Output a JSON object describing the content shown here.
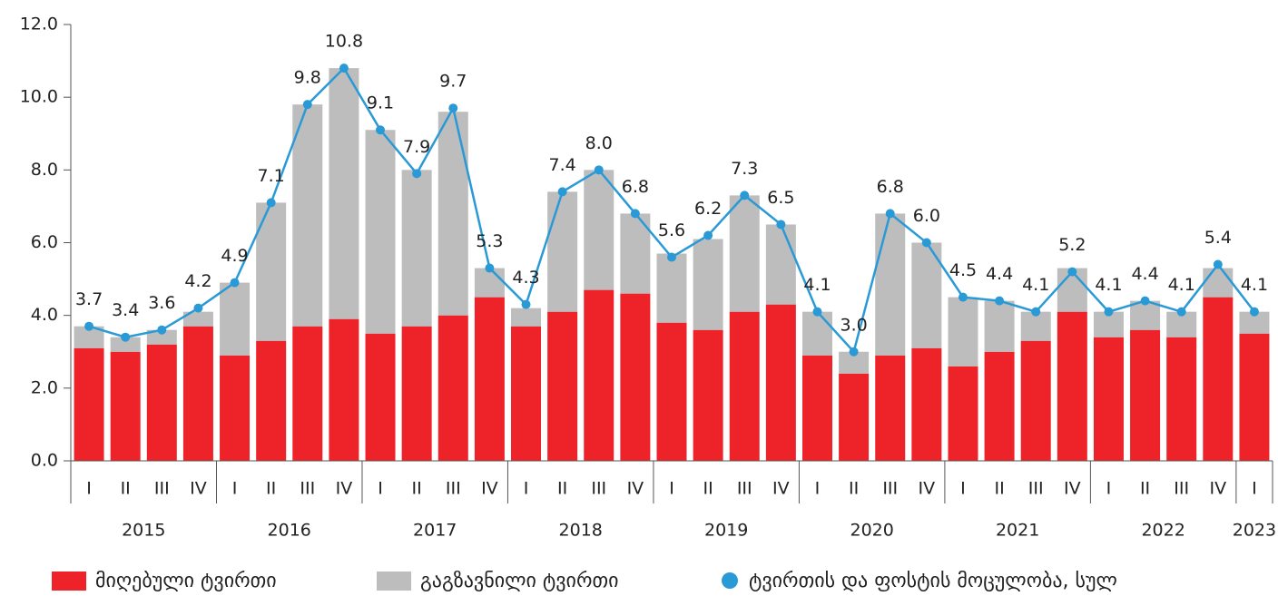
{
  "chart_data": {
    "type": "bar",
    "categories": [
      "I",
      "II",
      "III",
      "IV",
      "I",
      "II",
      "III",
      "IV",
      "I",
      "II",
      "III",
      "IV",
      "I",
      "II",
      "III",
      "IV",
      "I",
      "II",
      "III",
      "IV",
      "I",
      "II",
      "III",
      "IV",
      "I",
      "II",
      "III",
      "IV",
      "I",
      "II",
      "III",
      "IV",
      "I"
    ],
    "years": [
      "2015",
      "2016",
      "2017",
      "2018",
      "2019",
      "2020",
      "2021",
      "2022",
      "2023"
    ],
    "stacked": true,
    "series": [
      {
        "name": "მიღებული ტვირთი",
        "color": "#ee2229",
        "type": "bar",
        "values": [
          3.1,
          3.0,
          3.2,
          3.7,
          2.9,
          3.3,
          3.7,
          3.9,
          3.5,
          3.7,
          4.0,
          4.5,
          3.7,
          4.1,
          4.7,
          4.6,
          3.8,
          3.6,
          4.1,
          4.3,
          2.9,
          2.4,
          2.9,
          3.1,
          2.6,
          3.0,
          3.3,
          4.1,
          3.4,
          3.6,
          3.4,
          4.5,
          3.5
        ]
      },
      {
        "name": "გაგზავნილი ტვირთი",
        "color": "#bdbdbe",
        "type": "bar",
        "values": [
          0.6,
          0.4,
          0.4,
          0.4,
          2.0,
          3.8,
          6.1,
          6.9,
          5.6,
          4.3,
          5.6,
          0.8,
          0.5,
          3.3,
          3.3,
          2.2,
          1.9,
          2.5,
          3.2,
          2.2,
          1.2,
          0.6,
          3.9,
          2.9,
          1.9,
          1.4,
          0.8,
          1.2,
          0.7,
          0.8,
          0.7,
          0.8,
          0.6
        ]
      },
      {
        "name": "ტვირთის და ფოსტის მოცულობა, სულ",
        "color": "#2a9ad6",
        "type": "line",
        "values": [
          3.7,
          3.4,
          3.6,
          4.2,
          4.9,
          7.1,
          9.8,
          10.8,
          9.1,
          7.9,
          9.7,
          5.3,
          4.3,
          7.4,
          8.0,
          6.8,
          5.6,
          6.2,
          7.3,
          6.5,
          4.1,
          3.0,
          6.8,
          6.0,
          4.5,
          4.4,
          4.1,
          5.2,
          4.1,
          4.4,
          4.1,
          5.4,
          4.1
        ],
        "value_labels": [
          "3.7",
          "3.4",
          "3.6",
          "4.2",
          "4.9",
          "7.1",
          "9.8",
          "10.8",
          "9.1",
          "7.9",
          "9.7",
          "5.3",
          "4.3",
          "7.4",
          "8.0",
          "6.8",
          "5.6",
          "6.2",
          "7.3",
          "6.5",
          "4.1",
          "3.0",
          "6.8",
          "6.0",
          "4.5",
          "4.4",
          "4.1",
          "5.2",
          "4.1",
          "4.4",
          "4.1",
          "5.4",
          "4.1"
        ]
      }
    ],
    "ylim": [
      0,
      12
    ],
    "yticks": [
      {
        "value": 0,
        "label": "0.0"
      },
      {
        "value": 2,
        "label": "2.0"
      },
      {
        "value": 4,
        "label": "4.0"
      },
      {
        "value": 6,
        "label": "6.0"
      },
      {
        "value": 8,
        "label": "8.0"
      },
      {
        "value": 10,
        "label": "10.0"
      },
      {
        "value": 12,
        "label": "12.0"
      }
    ],
    "grid": false,
    "legend": "bottom"
  }
}
